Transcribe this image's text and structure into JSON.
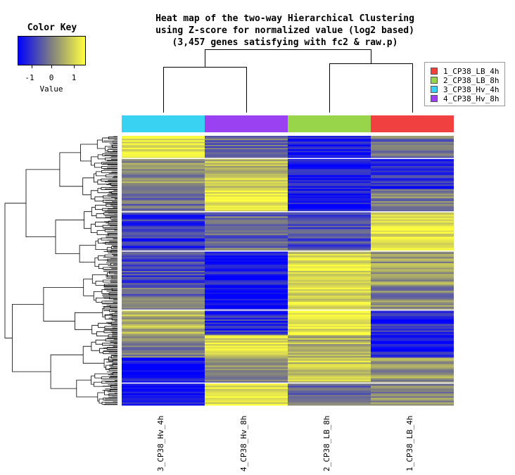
{
  "title": [
    "Heat map of the two-way Hierarchical Clustering",
    "using Z-score for normalized value (log2 based)",
    "(3,457 genes satisfying with fc2 & raw.p)"
  ],
  "color_key": {
    "title": "Color Key",
    "value_label": "Value",
    "ticks": [
      -1,
      0,
      1
    ],
    "range": [
      -1.5,
      1.5
    ],
    "colors": {
      "low": "#0000ff",
      "mid": "#808080",
      "high": "#ffff40"
    }
  },
  "legend": {
    "items": [
      {
        "label": "1_CP38_LB_4h",
        "color": "#f04040"
      },
      {
        "label": "2_CP38_LB_8h",
        "color": "#99d54a"
      },
      {
        "label": "3_CP38_Hv_4h",
        "color": "#3ad2f2"
      },
      {
        "label": "4_CP38_Hv_8h",
        "color": "#9a42f2"
      }
    ]
  },
  "chart_data": {
    "type": "heatmap",
    "title": "Heat map of the two-way Hierarchical Clustering using Z-score for normalized value (log2 based) (3,457 genes satisfying with fc2 & raw.p)",
    "xlabel": "",
    "ylabel": "",
    "gene_count": 3457,
    "value_range": [
      -1.5,
      1.5
    ],
    "columns": [
      {
        "name": "3_CP38_Hv_4h",
        "group_color": "#3ad2f2"
      },
      {
        "name": "4_CP38_Hv_8h",
        "group_color": "#9a42f2"
      },
      {
        "name": "2_CP38_LB_8h",
        "group_color": "#99d54a"
      },
      {
        "name": "1_CP38_LB_4h",
        "group_color": "#f04040"
      }
    ],
    "column_dendrogram": "((3_CP38_Hv_4h,4_CP38_Hv_8h),(2_CP38_LB_8h,1_CP38_LB_4h))",
    "row_blocks": [
      {
        "rows": 80,
        "z": [
          1.3,
          -0.3,
          -1.2,
          -0.2
        ]
      },
      {
        "rows": 110,
        "z": [
          0.2,
          0.8,
          -1.2,
          -1.0
        ]
      },
      {
        "rows": 80,
        "z": [
          -0.2,
          1.3,
          -1.3,
          0.0
        ]
      },
      {
        "rows": 140,
        "z": [
          -0.9,
          -0.3,
          -0.6,
          1.3
        ]
      },
      {
        "rows": 120,
        "z": [
          -0.7,
          -1.2,
          1.1,
          0.3
        ]
      },
      {
        "rows": 90,
        "z": [
          -0.3,
          -1.3,
          1.2,
          0.1
        ]
      },
      {
        "rows": 90,
        "z": [
          0.6,
          -1.0,
          1.3,
          -1.0
        ]
      },
      {
        "rows": 80,
        "z": [
          0.1,
          1.2,
          0.6,
          -1.2
        ]
      },
      {
        "rows": 90,
        "z": [
          -1.3,
          0.1,
          0.9,
          0.3
        ]
      },
      {
        "rows": 80,
        "z": [
          -1.2,
          1.3,
          -0.3,
          0.2
        ]
      }
    ]
  }
}
